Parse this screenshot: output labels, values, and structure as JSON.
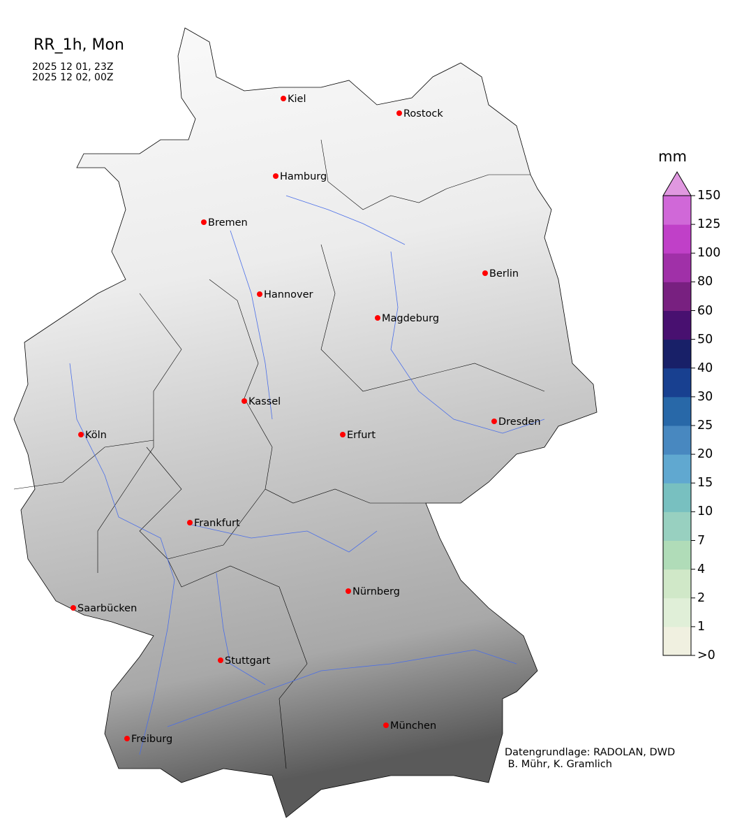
{
  "title": "RR_1h, Mon",
  "period_start": "2025 12 01, 23Z",
  "period_end": "2025 12 02, 00Z",
  "credit": [
    "Datengrundlage: RADOLAN, DWD",
    " B. Mühr, K. Gramlich"
  ],
  "colorbar": {
    "unit": "mm",
    "ticks": [
      ">0",
      "1",
      "2",
      "4",
      "7",
      "10",
      "15",
      "20",
      "25",
      "30",
      "40",
      "50",
      "60",
      "80",
      "100",
      "125",
      "150"
    ],
    "colors": [
      "#f0f0e0",
      "#e0efd8",
      "#d0e8c8",
      "#b0dcb8",
      "#98d0c0",
      "#78c0c0",
      "#60a8d0",
      "#4888c0",
      "#2868a8",
      "#184090",
      "#182068",
      "#481070",
      "#782080",
      "#a030a8",
      "#c040c8",
      "#d068d8"
    ],
    "extend_color": "#e098e0"
  },
  "cities": [
    {
      "name": "Kiel"
    },
    {
      "name": "Rostock"
    },
    {
      "name": "Hamburg"
    },
    {
      "name": "Bremen"
    },
    {
      "name": "Berlin"
    },
    {
      "name": "Hannover"
    },
    {
      "name": "Magdeburg"
    },
    {
      "name": "Kassel"
    },
    {
      "name": "Dresden"
    },
    {
      "name": "Köln"
    },
    {
      "name": "Erfurt"
    },
    {
      "name": "Frankfurt"
    },
    {
      "name": "Nürnberg"
    },
    {
      "name": "Saarbücken"
    },
    {
      "name": "Stuttgart"
    },
    {
      "name": "München"
    },
    {
      "name": "Freiburg"
    }
  ],
  "colors": {
    "city_marker": "#ff0000",
    "river": "#4a6ee8",
    "border": "#000000"
  }
}
